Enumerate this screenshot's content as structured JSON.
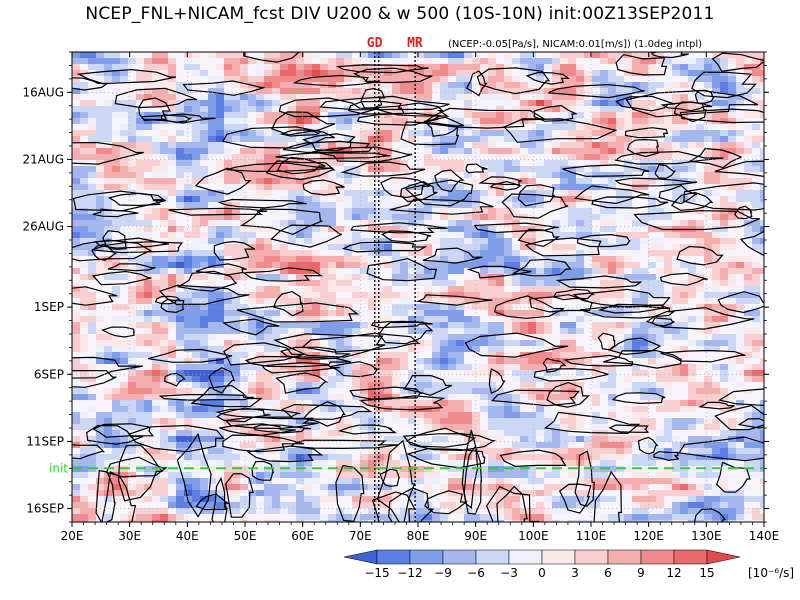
{
  "chart_data": {
    "type": "heatmap",
    "title": "NCEP_FNL+NICAM_fcst DIV U200 & w 500 (10S-10N) init:00Z13SEP2011",
    "note": "(NCEP:-0.05[Pa/s], NICAM:0.01[m/s]) (1.0deg intpl)",
    "x_axis": {
      "range": [
        20,
        140
      ],
      "ticks": [
        {
          "value": 20,
          "label": "20E"
        },
        {
          "value": 30,
          "label": "30E"
        },
        {
          "value": 40,
          "label": "40E"
        },
        {
          "value": 50,
          "label": "50E"
        },
        {
          "value": 60,
          "label": "60E"
        },
        {
          "value": 70,
          "label": "70E"
        },
        {
          "value": 80,
          "label": "80E"
        },
        {
          "value": 90,
          "label": "90E"
        },
        {
          "value": 100,
          "label": "100E"
        },
        {
          "value": 110,
          "label": "110E"
        },
        {
          "value": 120,
          "label": "120E"
        },
        {
          "value": 130,
          "label": "130E"
        },
        {
          "value": 140,
          "label": "140E"
        }
      ]
    },
    "y_axis": {
      "range_days": [
        0,
        35
      ],
      "start_date": "13AUG2011",
      "ticks": [
        {
          "day": 3,
          "label": "16AUG"
        },
        {
          "day": 8,
          "label": "21AUG"
        },
        {
          "day": 13,
          "label": "26AUG"
        },
        {
          "day": 19,
          "label": "1SEP"
        },
        {
          "day": 24,
          "label": "6SEP"
        },
        {
          "day": 29,
          "label": "11SEP"
        },
        {
          "day": 34,
          "label": "16SEP"
        }
      ]
    },
    "init_line": {
      "day": 31,
      "label": "init"
    },
    "markers": [
      {
        "lon": 72.5,
        "label": "GD"
      },
      {
        "lon": 73.2,
        "label": ""
      },
      {
        "lon": 79.5,
        "label": "MR"
      }
    ],
    "colorbar": {
      "levels": [
        -15,
        -12,
        -9,
        -6,
        -3,
        0,
        3,
        6,
        9,
        12,
        15
      ],
      "labels": [
        "−15",
        "−12",
        "−9",
        "−6",
        "−3",
        "0",
        "3",
        "6",
        "9",
        "12",
        "15"
      ],
      "unit": "[10⁻⁶/s]",
      "colors": [
        "#3f61d6",
        "#5b7fe3",
        "#7f9de8",
        "#a5b8ee",
        "#ccd6f5",
        "#eef0fb",
        "#fbe9ea",
        "#f8cfd1",
        "#f4aeb0",
        "#f08b8d",
        "#ea6a6b",
        "#e24a4c"
      ]
    },
    "colors": {
      "init_line": "#33cc33",
      "marker_text": "#e02020",
      "contour": "#000000"
    }
  }
}
